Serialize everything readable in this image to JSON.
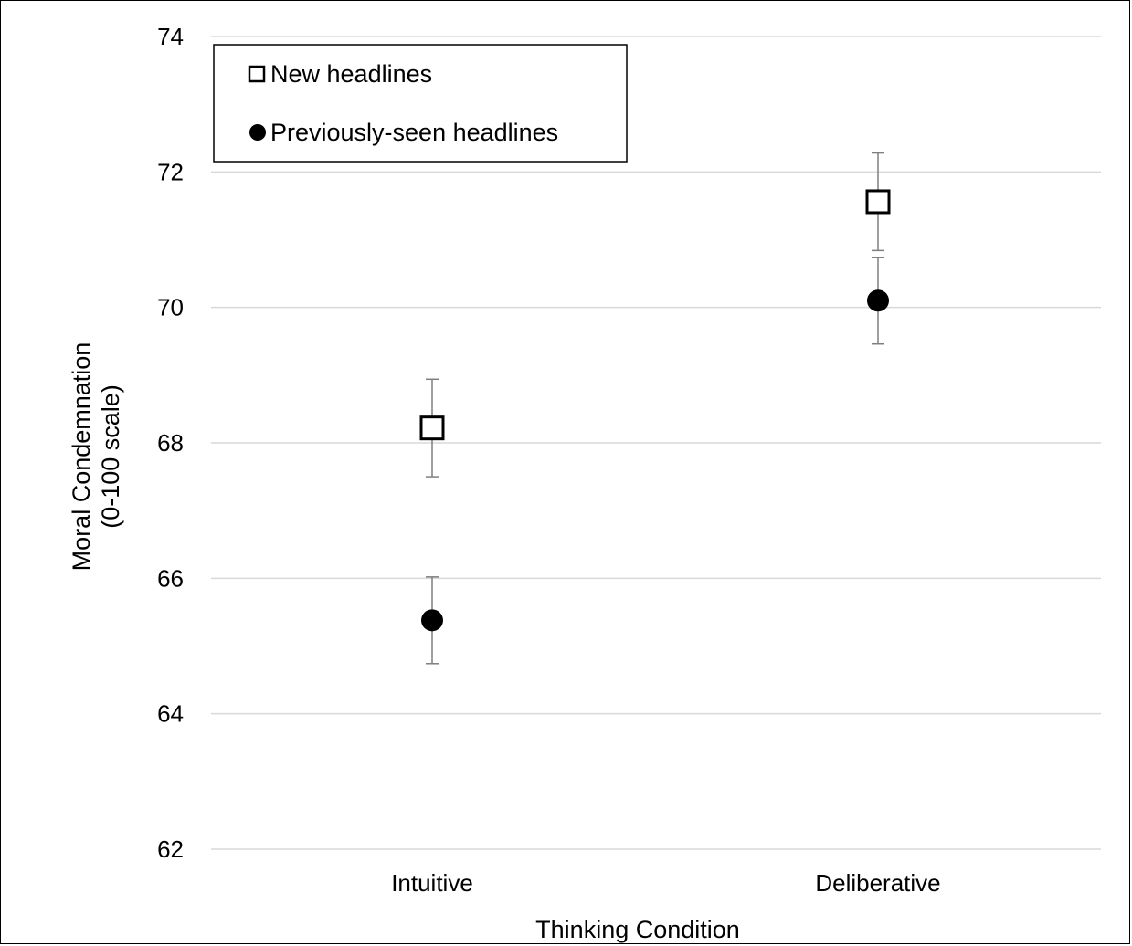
{
  "chart_data": {
    "type": "scatter",
    "title": "",
    "xlabel": "Thinking Condition",
    "ylabel_lines": [
      "Moral Condemnation",
      "(0-100 scale)"
    ],
    "categories": [
      "Intuitive",
      "Deliberative"
    ],
    "ylim": [
      62,
      74
    ],
    "yticks": [
      62,
      64,
      66,
      68,
      70,
      72,
      74
    ],
    "grid": true,
    "legend_position": "top-left",
    "series": [
      {
        "name": "New headlines",
        "marker": "open-square",
        "color": "#000000",
        "values": [
          68.22,
          71.56
        ],
        "error": [
          0.72,
          0.72
        ]
      },
      {
        "name": "Previously-seen headlines",
        "marker": "filled-circle",
        "color": "#000000",
        "values": [
          65.38,
          70.1
        ],
        "error": [
          0.64,
          0.64
        ]
      }
    ],
    "colors": {
      "grid": "#d9d9d9",
      "error_bar": "#7f7f7f",
      "marker": "#000000"
    }
  }
}
